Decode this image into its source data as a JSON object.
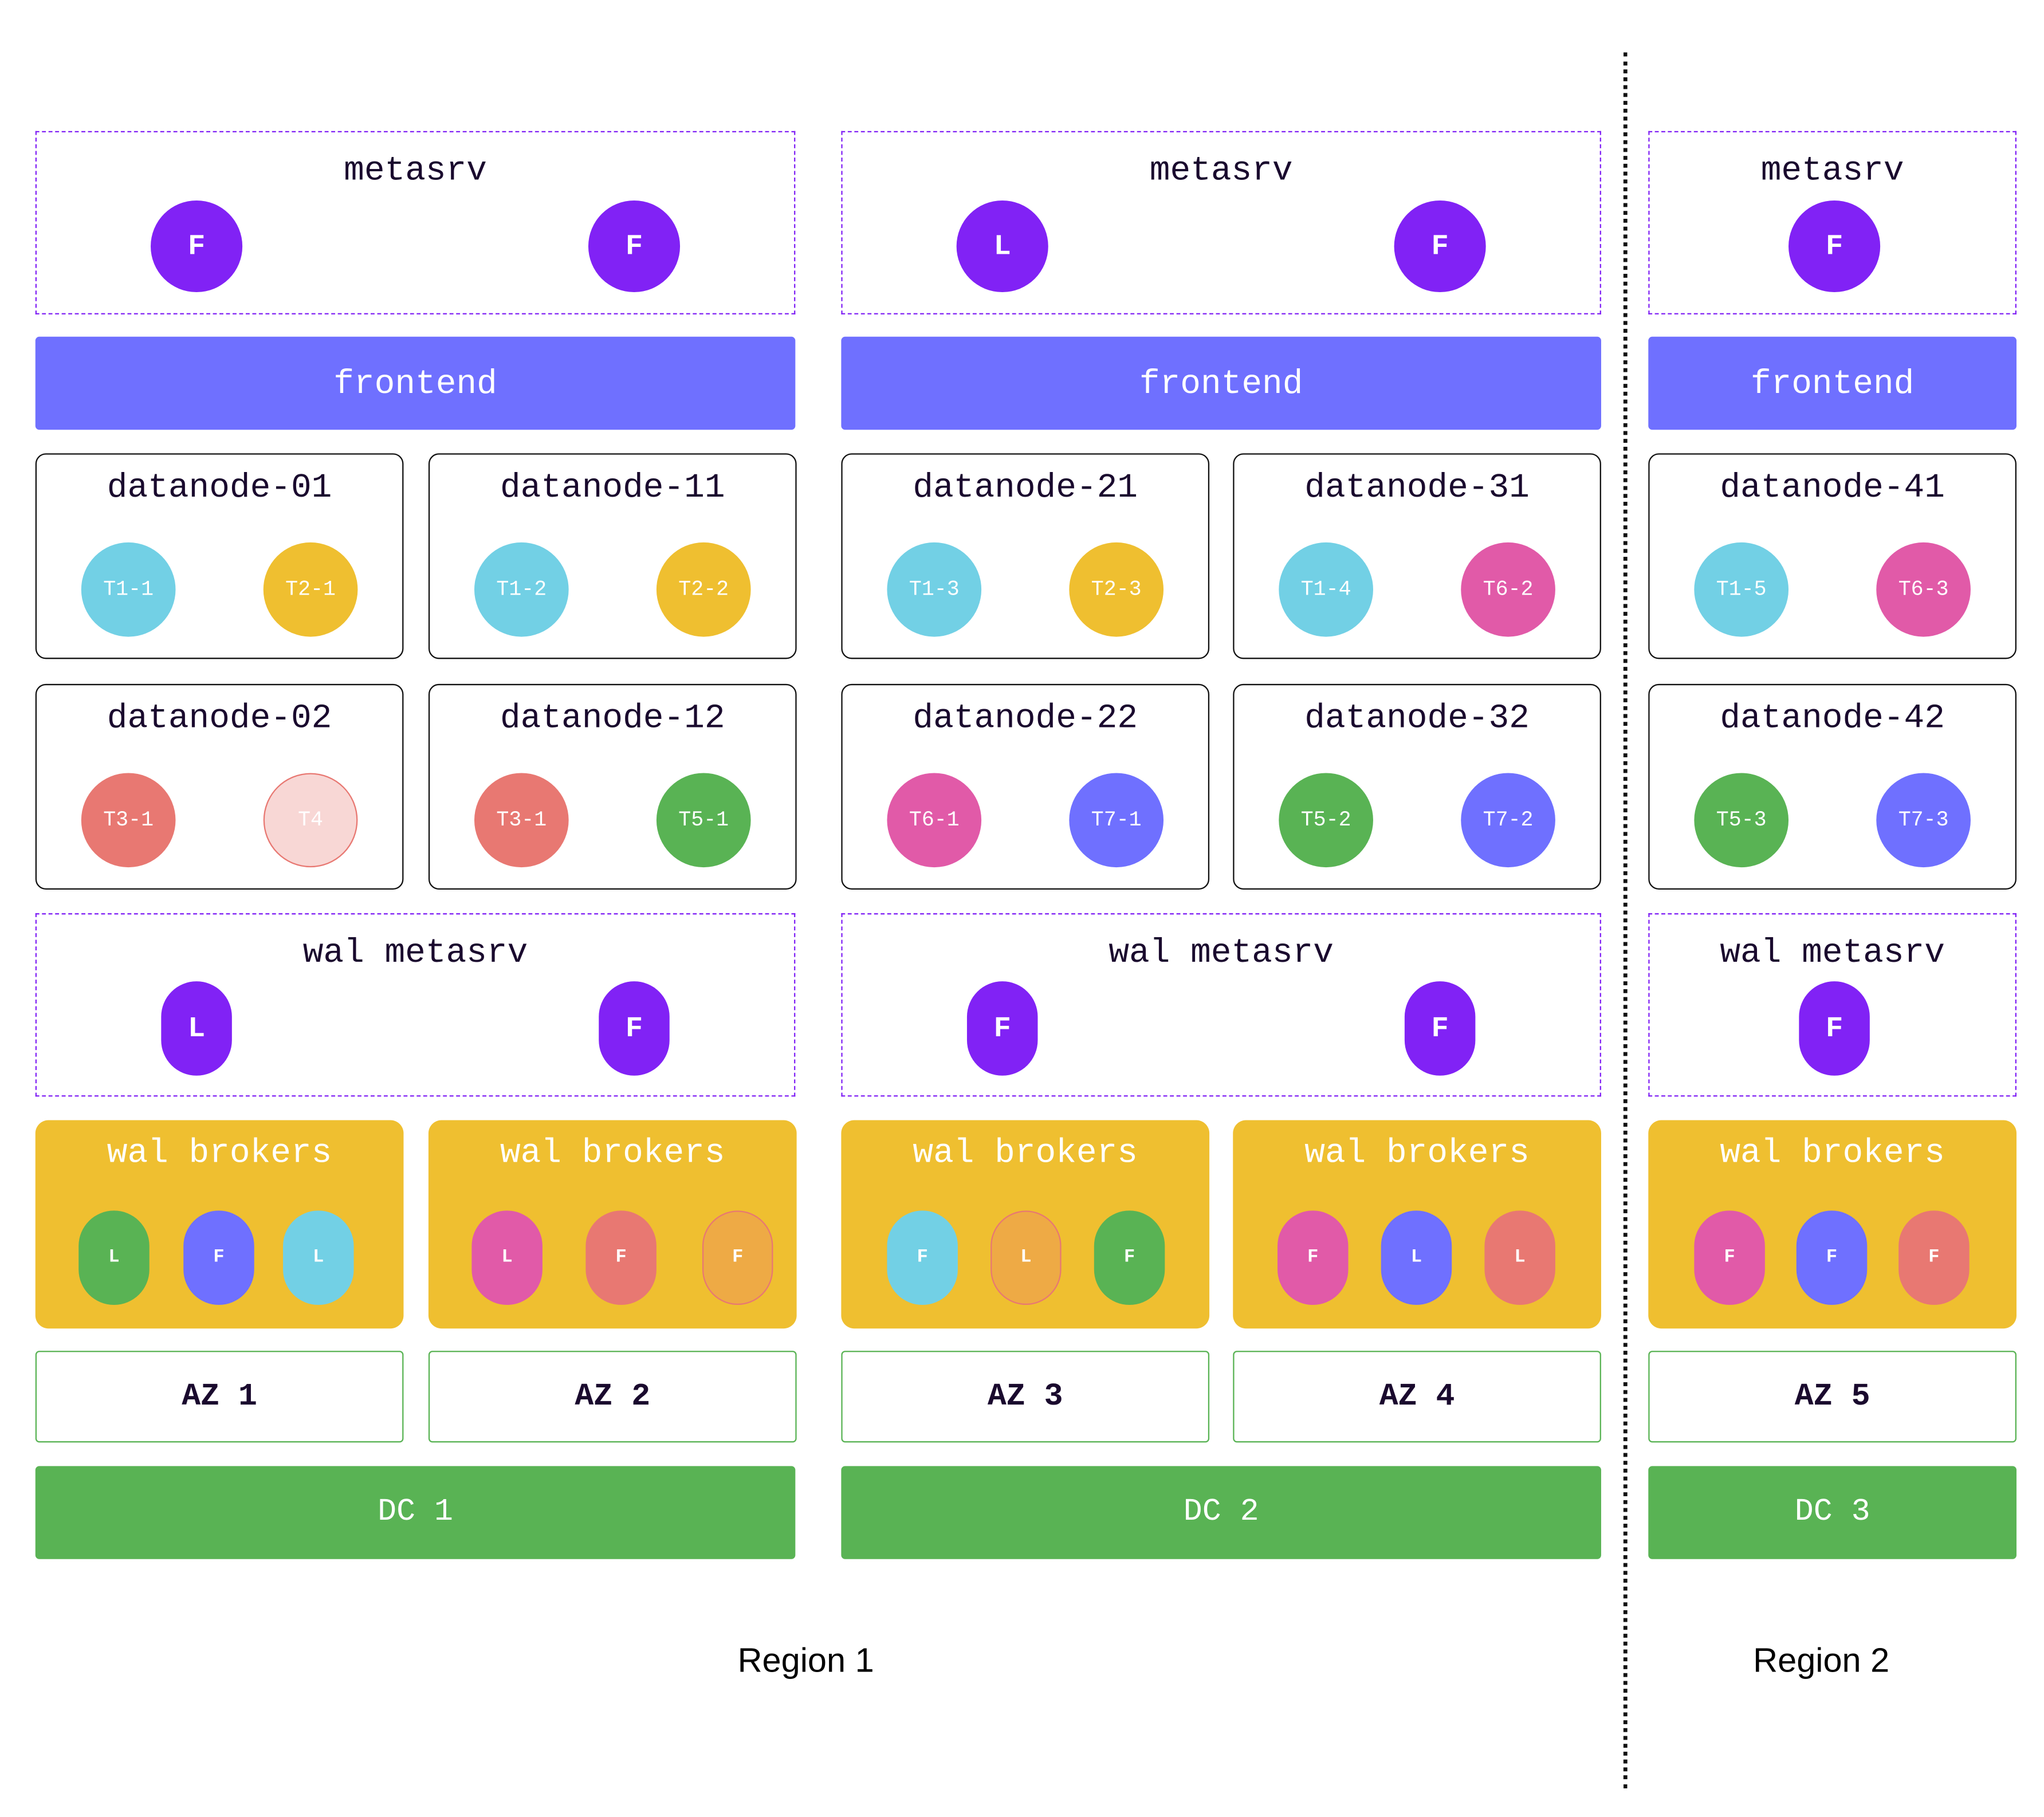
{
  "colors": {
    "purple": "#8122f5",
    "frontend": "#6f70ff",
    "cyan": "#72d0e5",
    "yellow": "#efbf30",
    "red": "#e87872",
    "green": "#59b354",
    "pink": "#e15aa8",
    "blue": "#6f70ff",
    "orange": "#eeaa45",
    "lightred": "#f8d7d5"
  },
  "dcs": [
    {
      "metasrv": {
        "title": "metasrv",
        "nodes": [
          "F",
          "F"
        ]
      },
      "frontend": "frontend",
      "wal_metasrv": {
        "title": "wal metasrv",
        "nodes": [
          "L",
          "F"
        ]
      },
      "azs": [
        {
          "datanodes": [
            {
              "name": "datanode-01",
              "tables": [
                {
                  "label": "T1-1",
                  "color": "cyan"
                },
                {
                  "label": "T2-1",
                  "color": "yellow"
                }
              ]
            },
            {
              "name": "datanode-02",
              "tables": [
                {
                  "label": "T3-1",
                  "color": "red"
                },
                {
                  "label": "T4",
                  "color": "lightred",
                  "border": "red"
                }
              ]
            }
          ],
          "wal_brokers": {
            "title": "wal brokers",
            "nodes": [
              {
                "label": "L",
                "color": "green"
              },
              {
                "label": "F",
                "color": "blue"
              },
              {
                "label": "L",
                "color": "cyan"
              }
            ]
          },
          "label": "AZ 1"
        },
        {
          "datanodes": [
            {
              "name": "datanode-11",
              "tables": [
                {
                  "label": "T1-2",
                  "color": "cyan"
                },
                {
                  "label": "T2-2",
                  "color": "yellow"
                }
              ]
            },
            {
              "name": "datanode-12",
              "tables": [
                {
                  "label": "T3-1",
                  "color": "red"
                },
                {
                  "label": "T5-1",
                  "color": "green"
                }
              ]
            }
          ],
          "wal_brokers": {
            "title": "wal brokers",
            "nodes": [
              {
                "label": "L",
                "color": "pink"
              },
              {
                "label": "F",
                "color": "red"
              },
              {
                "label": "F",
                "color": "orange",
                "border": "red"
              }
            ]
          },
          "label": "AZ 2"
        }
      ],
      "label": "DC 1"
    },
    {
      "metasrv": {
        "title": "metasrv",
        "nodes": [
          "L",
          "F"
        ]
      },
      "frontend": "frontend",
      "wal_metasrv": {
        "title": "wal metasrv",
        "nodes": [
          "F",
          "F"
        ]
      },
      "azs": [
        {
          "datanodes": [
            {
              "name": "datanode-21",
              "tables": [
                {
                  "label": "T1-3",
                  "color": "cyan"
                },
                {
                  "label": "T2-3",
                  "color": "yellow"
                }
              ]
            },
            {
              "name": "datanode-22",
              "tables": [
                {
                  "label": "T6-1",
                  "color": "pink"
                },
                {
                  "label": "T7-1",
                  "color": "blue"
                }
              ]
            }
          ],
          "wal_brokers": {
            "title": "wal brokers",
            "nodes": [
              {
                "label": "F",
                "color": "cyan"
              },
              {
                "label": "L",
                "color": "orange",
                "border": "red"
              },
              {
                "label": "F",
                "color": "green"
              }
            ]
          },
          "label": "AZ 3"
        },
        {
          "datanodes": [
            {
              "name": "datanode-31",
              "tables": [
                {
                  "label": "T1-4",
                  "color": "cyan"
                },
                {
                  "label": "T6-2",
                  "color": "pink"
                }
              ]
            },
            {
              "name": "datanode-32",
              "tables": [
                {
                  "label": "T5-2",
                  "color": "green"
                },
                {
                  "label": "T7-2",
                  "color": "blue"
                }
              ]
            }
          ],
          "wal_brokers": {
            "title": "wal brokers",
            "nodes": [
              {
                "label": "F",
                "color": "pink"
              },
              {
                "label": "L",
                "color": "blue"
              },
              {
                "label": "L",
                "color": "red"
              }
            ]
          },
          "label": "AZ 4"
        }
      ],
      "label": "DC 2"
    },
    {
      "metasrv": {
        "title": "metasrv",
        "nodes": [
          "F"
        ]
      },
      "frontend": "frontend",
      "wal_metasrv": {
        "title": "wal metasrv",
        "nodes": [
          "F"
        ]
      },
      "azs": [
        {
          "datanodes": [
            {
              "name": "datanode-41",
              "tables": [
                {
                  "label": "T1-5",
                  "color": "cyan"
                },
                {
                  "label": "T6-3",
                  "color": "pink"
                }
              ]
            },
            {
              "name": "datanode-42",
              "tables": [
                {
                  "label": "T5-3",
                  "color": "green"
                },
                {
                  "label": "T7-3",
                  "color": "blue"
                }
              ]
            }
          ],
          "wal_brokers": {
            "title": "wal brokers",
            "nodes": [
              {
                "label": "F",
                "color": "pink"
              },
              {
                "label": "F",
                "color": "blue"
              },
              {
                "label": "F",
                "color": "red"
              }
            ]
          },
          "label": "AZ 5"
        }
      ],
      "label": "DC 3"
    }
  ],
  "regions": [
    {
      "label": "Region 1"
    },
    {
      "label": "Region 2"
    }
  ]
}
